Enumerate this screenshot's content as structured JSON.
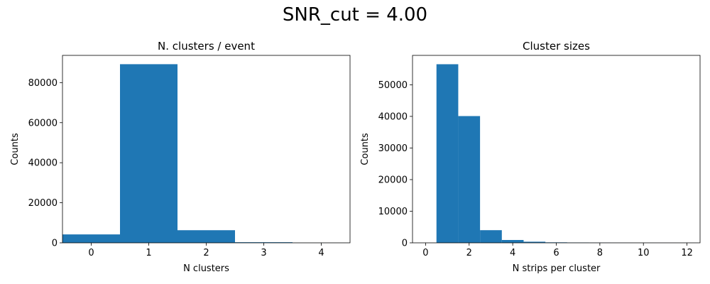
{
  "figure": {
    "suptitle": "SNR_cut = 4.00"
  },
  "chart_data": [
    {
      "type": "bar",
      "title": "N. clusters / event",
      "xlabel": "N clusters",
      "ylabel": "Counts",
      "bins": [
        {
          "x0": -0.5,
          "x1": 0.5,
          "value": 4200
        },
        {
          "x0": 0.5,
          "x1": 1.5,
          "value": 89200
        },
        {
          "x0": 1.5,
          "x1": 2.5,
          "value": 6300
        },
        {
          "x0": 2.5,
          "x1": 3.5,
          "value": 300
        },
        {
          "x0": 3.5,
          "x1": 4.5,
          "value": 20
        }
      ],
      "xlim": [
        -0.5,
        4.5
      ],
      "ylim": [
        0,
        93600
      ],
      "xticks": [
        0,
        1,
        2,
        3,
        4
      ],
      "yticks": [
        0,
        20000,
        40000,
        60000,
        80000
      ],
      "color": "#1f77b4",
      "grid": false
    },
    {
      "type": "bar",
      "title": "Cluster sizes",
      "xlabel": "N strips per cluster",
      "ylabel": "Counts",
      "bins": [
        {
          "x0": 0.5,
          "x1": 1.5,
          "value": 56500
        },
        {
          "x0": 1.5,
          "x1": 2.5,
          "value": 40100
        },
        {
          "x0": 2.5,
          "x1": 3.5,
          "value": 4000
        },
        {
          "x0": 3.5,
          "x1": 4.5,
          "value": 900
        },
        {
          "x0": 4.5,
          "x1": 5.5,
          "value": 350
        },
        {
          "x0": 5.5,
          "x1": 6.5,
          "value": 150
        },
        {
          "x0": 6.5,
          "x1": 7.5,
          "value": 80
        },
        {
          "x0": 7.5,
          "x1": 8.5,
          "value": 40
        },
        {
          "x0": 8.5,
          "x1": 9.5,
          "value": 20
        },
        {
          "x0": 9.5,
          "x1": 10.5,
          "value": 10
        },
        {
          "x0": 10.5,
          "x1": 11.5,
          "value": 5
        },
        {
          "x0": 11.5,
          "x1": 12.5,
          "value": 3
        }
      ],
      "xlim": [
        -0.6,
        12.6
      ],
      "ylim": [
        0,
        59300
      ],
      "xticks": [
        0,
        2,
        4,
        6,
        8,
        10,
        12
      ],
      "yticks": [
        0,
        10000,
        20000,
        30000,
        40000,
        50000
      ],
      "color": "#1f77b4",
      "grid": false
    }
  ]
}
